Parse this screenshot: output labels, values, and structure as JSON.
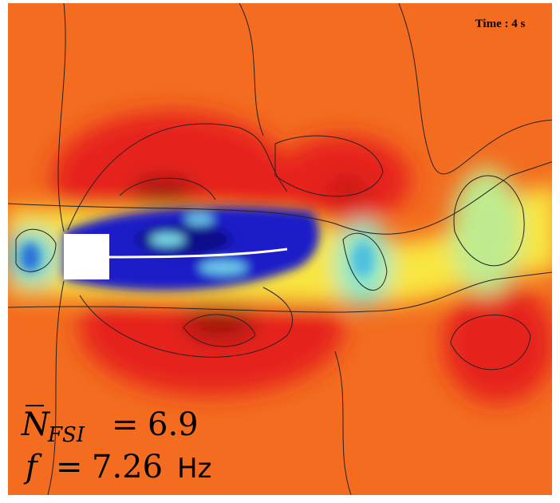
{
  "time_label": "Time : 4 s",
  "n_fsi": {
    "symbol": "N",
    "subscript": "FSI",
    "operator": "=",
    "value": 6.9
  },
  "frequency": {
    "symbol": "f",
    "operator": "=",
    "value": 7.26,
    "unit": "Hz"
  }
}
